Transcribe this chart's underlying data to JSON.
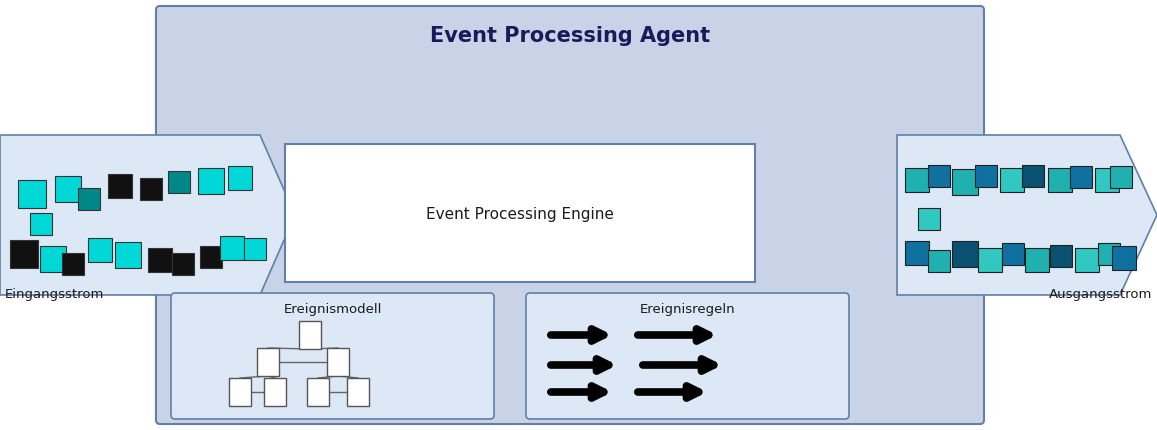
{
  "title": "Event Processing Agent",
  "engine_label": "Event Processing Engine",
  "input_label": "Eingangsstrom",
  "output_label": "Ausgangsstrom",
  "model_label": "Ereignismodell",
  "rules_label": "Ereignisregeln",
  "agent_bg": "#c8d3e8",
  "engine_bg": "#ffffff",
  "arrow_bg": "#dce8f5",
  "subbox_bg": "#dce8f5",
  "dark_border": "#6080a8",
  "cyan": "#00d8d8",
  "teal": "#008888",
  "black_sq": "#111111",
  "out_cyan": "#20b8b8",
  "out_dark": "#1a5f80",
  "out_med": "#2090a0"
}
